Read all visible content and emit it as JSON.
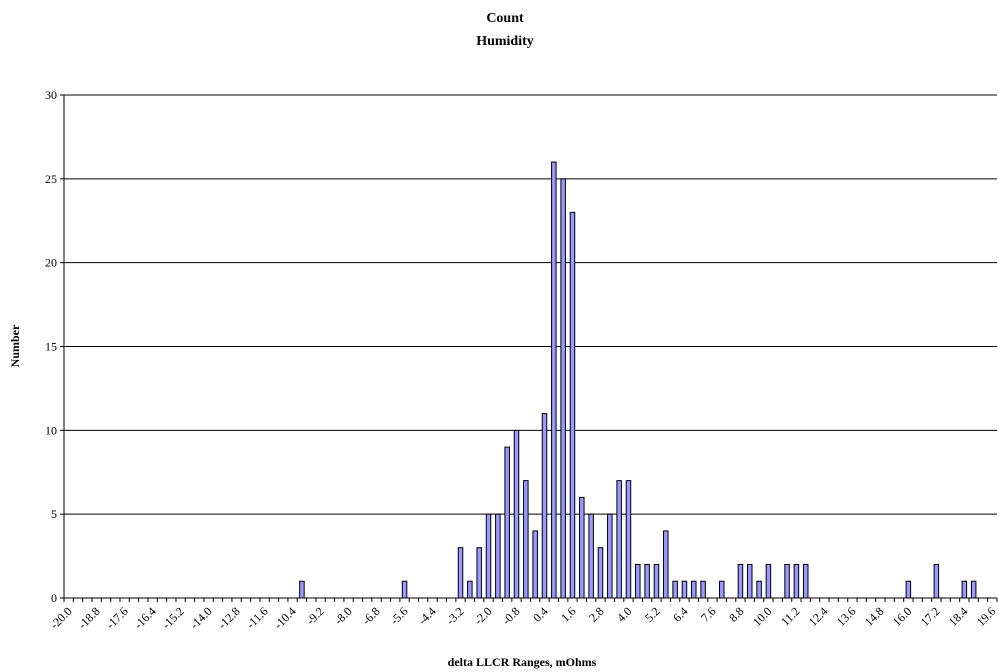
{
  "chart_data": {
    "type": "bar",
    "title": "Count",
    "subtitle": "Humidity",
    "xlabel": "delta LLCR Ranges, mOhms",
    "ylabel": "Number",
    "ylim": [
      0,
      30
    ],
    "yticks": [
      "0",
      "5",
      "10",
      "15",
      "20",
      "25",
      "30"
    ],
    "grid": true,
    "legend": "none",
    "bar_color": "#9999ff",
    "categories": [
      "-20.0",
      "-19.6",
      "-19.2",
      "-18.8",
      "-18.4",
      "-18.0",
      "-17.6",
      "-17.2",
      "-16.8",
      "-16.4",
      "-16.0",
      "-15.6",
      "-15.2",
      "-14.8",
      "-14.4",
      "-14.0",
      "-13.6",
      "-13.2",
      "-12.8",
      "-12.4",
      "-12.0",
      "-11.6",
      "-11.2",
      "-10.8",
      "-10.4",
      "-10.0",
      "-9.6",
      "-9.2",
      "-8.8",
      "-8.4",
      "-8.0",
      "-7.6",
      "-7.2",
      "-6.8",
      "-6.4",
      "-6.0",
      "-5.6",
      "-5.2",
      "-4.8",
      "-4.4",
      "-4.0",
      "-3.6",
      "-3.2",
      "-2.8",
      "-2.4",
      "-2.0",
      "-1.6",
      "-1.2",
      "-0.8",
      "-0.4",
      "0.0",
      "0.4",
      "0.8",
      "1.2",
      "1.6",
      "2.0",
      "2.4",
      "2.8",
      "3.2",
      "3.6",
      "4.0",
      "4.4",
      "4.8",
      "5.2",
      "5.6",
      "6.0",
      "6.4",
      "6.8",
      "7.2",
      "7.6",
      "8.0",
      "8.4",
      "8.8",
      "9.2",
      "9.6",
      "10.0",
      "10.4",
      "10.8",
      "11.2",
      "11.6",
      "12.0",
      "12.4",
      "12.8",
      "13.2",
      "13.6",
      "14.0",
      "14.4",
      "14.8",
      "15.2",
      "15.6",
      "16.0",
      "16.4",
      "16.8",
      "17.2",
      "17.6",
      "18.0",
      "18.4",
      "18.8",
      "19.2",
      "19.6"
    ],
    "shown_tick_labels": [
      "-20.0",
      "-18.8",
      "-17.6",
      "-16.4",
      "-15.2",
      "-14.0",
      "-12.8",
      "-11.6",
      "-10.4",
      "-9.2",
      "-8.0",
      "-6.8",
      "-5.6",
      "-4.4",
      "-3.2",
      "-2.0",
      "-0.8",
      "0.4",
      "1.6",
      "2.8",
      "4.0",
      "5.2",
      "6.4",
      "7.6",
      "8.8",
      "10.0",
      "11.2",
      "12.4",
      "13.6",
      "14.8",
      "16.0",
      "17.2",
      "18.4",
      "19.6"
    ],
    "values": [
      0,
      0,
      0,
      0,
      0,
      0,
      0,
      0,
      0,
      0,
      0,
      0,
      0,
      0,
      0,
      0,
      0,
      0,
      0,
      0,
      0,
      0,
      0,
      0,
      0,
      1,
      0,
      0,
      0,
      0,
      0,
      0,
      0,
      0,
      0,
      0,
      1,
      0,
      0,
      0,
      0,
      0,
      3,
      1,
      3,
      5,
      5,
      9,
      10,
      7,
      4,
      11,
      26,
      25,
      23,
      6,
      5,
      3,
      5,
      7,
      7,
      2,
      2,
      2,
      4,
      1,
      1,
      1,
      1,
      0,
      1,
      0,
      2,
      2,
      1,
      2,
      0,
      2,
      2,
      2,
      0,
      0,
      0,
      0,
      0,
      0,
      0,
      0,
      0,
      0,
      1,
      0,
      0,
      2,
      0,
      0,
      1,
      1,
      0,
      0
    ]
  }
}
